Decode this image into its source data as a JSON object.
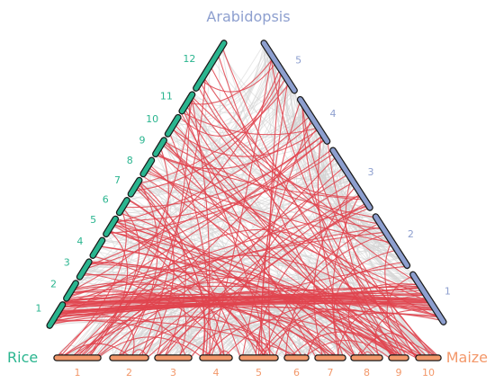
{
  "species": {
    "top": "Arabidopsis",
    "left": "Rice",
    "right": "Maize"
  },
  "colors": {
    "rice": "#2ab58f",
    "maize": "#f3986a",
    "arabidopsis": "#8d9fcf",
    "synteny_background": "#d3d3d3",
    "synteny_highlight": "#e0434e",
    "outline": "#1a1a1a"
  },
  "rice_chromosomes": [
    "1",
    "2",
    "3",
    "4",
    "5",
    "6",
    "7",
    "8",
    "9",
    "10",
    "11",
    "12"
  ],
  "maize_chromosomes": [
    "1",
    "2",
    "3",
    "4",
    "5",
    "6",
    "7",
    "8",
    "9",
    "10"
  ],
  "arabidopsis_chromosomes": [
    "1",
    "2",
    "3",
    "4",
    "5"
  ]
}
